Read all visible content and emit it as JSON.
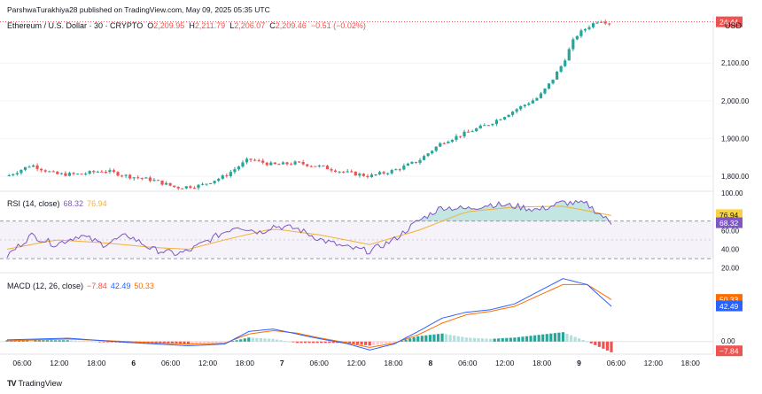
{
  "publisher_line": "ParshwaTurakhiya28 published on TradingView.com, May 09, 2025 05:35 UTC",
  "header": {
    "symbol": "Ethereum / U.S. Dollar · 30 · CRYPTO",
    "open_label": "O",
    "open": "2,209.95",
    "high_label": "H",
    "high": "2,211.79",
    "low_label": "L",
    "low": "2,206.07",
    "close_label": "C",
    "close": "2,209.46",
    "change": "−0.51 (−0.02%)"
  },
  "currency": "USD",
  "price_tag": "24:44",
  "rsi_legend": {
    "label": "RSI (14, close)",
    "rsi": "68.32",
    "ma": "76.94"
  },
  "macd_legend": {
    "label": "MACD (12, 26, close)",
    "hist": "−7.84",
    "macd": "42.49",
    "signal": "50.33"
  },
  "footer_brand": "TradingView",
  "colors": {
    "up": "#26a69a",
    "down": "#ef5350",
    "rsi": "#7e57c2",
    "rsi_ma": "#f2b134",
    "macd": "#2962ff",
    "signal": "#ff6d00"
  },
  "chart_data": [
    {
      "type": "candlestick",
      "title": "Ethereum / U.S. Dollar · 30 · CRYPTO",
      "x_ticks": [
        "06:00",
        "12:00",
        "18:00",
        "6",
        "06:00",
        "12:00",
        "18:00",
        "7",
        "06:00",
        "12:00",
        "18:00",
        "8",
        "06:00",
        "12:00",
        "18:00",
        "9",
        "06:00",
        "12:00",
        "18:00"
      ],
      "y_ticks": [
        "2,100.00",
        "2,000.00",
        "1,900.00",
        "1,800.00"
      ],
      "ylim": [
        1760,
        2225
      ],
      "close_path": [
        [
          0,
          1800
        ],
        [
          4,
          1830
        ],
        [
          8,
          1805
        ],
        [
          12,
          1805
        ],
        [
          16,
          1815
        ],
        [
          20,
          1800
        ],
        [
          24,
          1790
        ],
        [
          28,
          1770
        ],
        [
          32,
          1775
        ],
        [
          36,
          1800
        ],
        [
          40,
          1845
        ],
        [
          44,
          1830
        ],
        [
          48,
          1835
        ],
        [
          52,
          1825
        ],
        [
          56,
          1810
        ],
        [
          60,
          1800
        ],
        [
          64,
          1815
        ],
        [
          68,
          1840
        ],
        [
          72,
          1890
        ],
        [
          76,
          1915
        ],
        [
          80,
          1940
        ],
        [
          84,
          1975
        ],
        [
          88,
          2010
        ],
        [
          90,
          2050
        ],
        [
          92,
          2100
        ],
        [
          94,
          2170
        ],
        [
          96,
          2195
        ],
        [
          98,
          2215
        ],
        [
          100,
          2205
        ]
      ],
      "last_price": "2,209.46"
    },
    {
      "type": "line",
      "title": "RSI (14, close)",
      "y_ticks": [
        "100.00",
        "60.00",
        "40.00",
        "20.00"
      ],
      "ylim": [
        15,
        100
      ],
      "bands": [
        70,
        30
      ],
      "series": [
        {
          "name": "RSI",
          "points": [
            [
              0,
              33
            ],
            [
              4,
              55
            ],
            [
              8,
              45
            ],
            [
              12,
              55
            ],
            [
              16,
              45
            ],
            [
              20,
              55
            ],
            [
              24,
              40
            ],
            [
              28,
              35
            ],
            [
              30,
              38
            ],
            [
              34,
              52
            ],
            [
              38,
              65
            ],
            [
              42,
              58
            ],
            [
              44,
              65
            ],
            [
              48,
              62
            ],
            [
              52,
              50
            ],
            [
              56,
              42
            ],
            [
              60,
              38
            ],
            [
              64,
              50
            ],
            [
              68,
              70
            ],
            [
              72,
              85
            ],
            [
              76,
              83
            ],
            [
              80,
              88
            ],
            [
              84,
              86
            ],
            [
              88,
              82
            ],
            [
              92,
              90
            ],
            [
              96,
              88
            ],
            [
              100,
              68
            ]
          ]
        },
        {
          "name": "RSI MA",
          "points": [
            [
              0,
              40
            ],
            [
              8,
              50
            ],
            [
              16,
              47
            ],
            [
              24,
              42
            ],
            [
              30,
              40
            ],
            [
              36,
              50
            ],
            [
              44,
              62
            ],
            [
              52,
              55
            ],
            [
              60,
              45
            ],
            [
              68,
              60
            ],
            [
              76,
              80
            ],
            [
              84,
              85
            ],
            [
              92,
              86
            ],
            [
              100,
              76
            ]
          ]
        }
      ],
      "last_values": {
        "rsi": "68.32",
        "ma": "76.94"
      }
    },
    {
      "type": "line",
      "title": "MACD (12, 26, close)",
      "y_ticks": [
        "50.33",
        "42.49",
        "0.00",
        "−7.84"
      ],
      "ylim": [
        -15,
        80
      ],
      "series": [
        {
          "name": "MACD",
          "points": [
            [
              0,
              2
            ],
            [
              10,
              4
            ],
            [
              20,
              -1
            ],
            [
              30,
              -5
            ],
            [
              36,
              -3
            ],
            [
              40,
              12
            ],
            [
              44,
              15
            ],
            [
              48,
              9
            ],
            [
              52,
              3
            ],
            [
              56,
              -2
            ],
            [
              60,
              -10
            ],
            [
              64,
              -3
            ],
            [
              68,
              12
            ],
            [
              72,
              28
            ],
            [
              76,
              35
            ],
            [
              80,
              38
            ],
            [
              84,
              45
            ],
            [
              88,
              60
            ],
            [
              92,
              75
            ],
            [
              96,
              68
            ],
            [
              100,
              42
            ]
          ]
        },
        {
          "name": "Signal",
          "points": [
            [
              0,
              1
            ],
            [
              10,
              3
            ],
            [
              20,
              0
            ],
            [
              30,
              -3
            ],
            [
              36,
              -2
            ],
            [
              40,
              9
            ],
            [
              44,
              13
            ],
            [
              48,
              10
            ],
            [
              52,
              4
            ],
            [
              56,
              -1
            ],
            [
              60,
              -7
            ],
            [
              64,
              -2
            ],
            [
              68,
              8
            ],
            [
              72,
              22
            ],
            [
              76,
              32
            ],
            [
              80,
              36
            ],
            [
              84,
              42
            ],
            [
              88,
              55
            ],
            [
              92,
              68
            ],
            [
              96,
              68
            ],
            [
              100,
              50
            ]
          ]
        }
      ],
      "last_values": {
        "macd": "42.49",
        "signal": "50.33",
        "hist": "−7.84"
      }
    }
  ]
}
